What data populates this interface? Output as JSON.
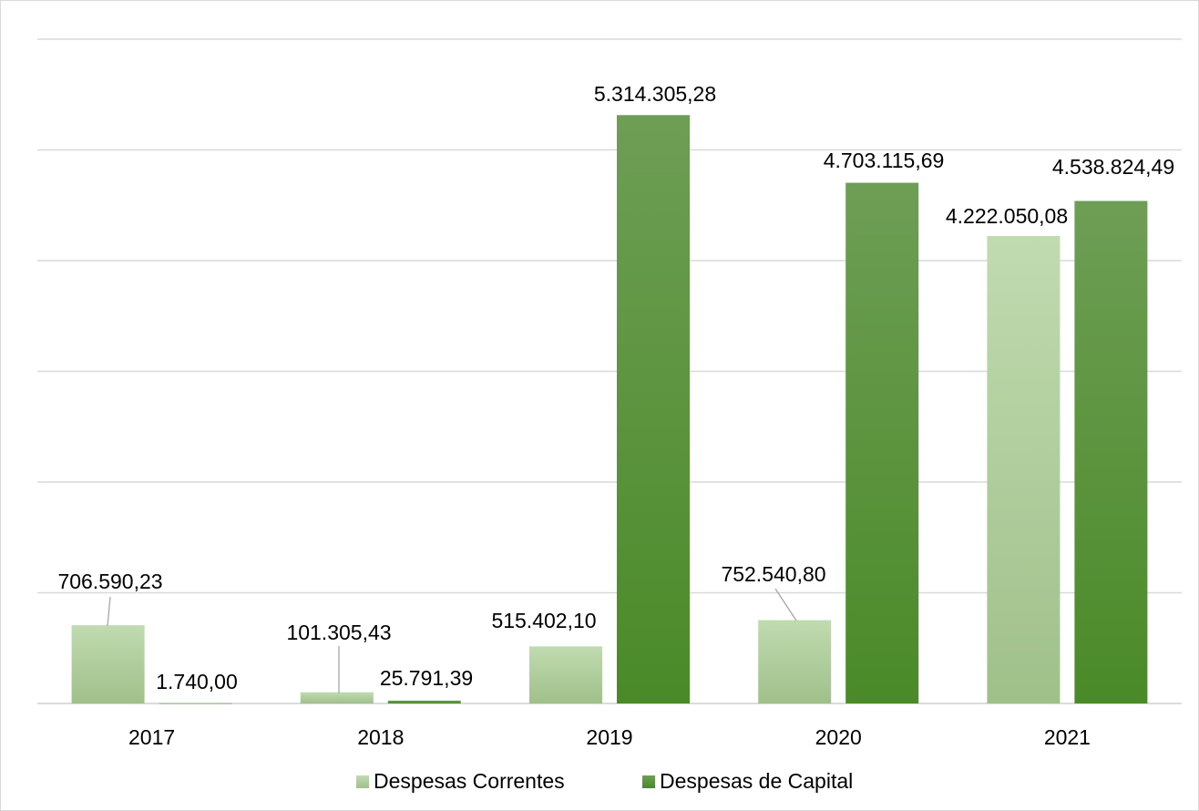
{
  "chart_data": {
    "type": "bar",
    "categories": [
      "2017",
      "2018",
      "2019",
      "2020",
      "2021"
    ],
    "series": [
      {
        "name": "Despesas Correntes",
        "values": [
          706590.23,
          101305.43,
          515402.1,
          752540.8,
          4222050.08
        ],
        "labels": [
          "706.590,23",
          "101.305,43",
          "515.402,10",
          "752.540,80",
          "4.222.050,08"
        ],
        "color": "#a9cc95"
      },
      {
        "name": "Despesas de Capital",
        "values": [
          1740.0,
          25791.39,
          5314305.28,
          4703115.69,
          4538824.49
        ],
        "labels": [
          "1.740,00",
          "25.791,39",
          "5.314.305,28",
          "4.703.115,69",
          "4.538.824,49"
        ],
        "color": "#548f34"
      }
    ],
    "ylim": [
      0,
      6000000
    ],
    "grid": true,
    "legend": "bottom"
  }
}
